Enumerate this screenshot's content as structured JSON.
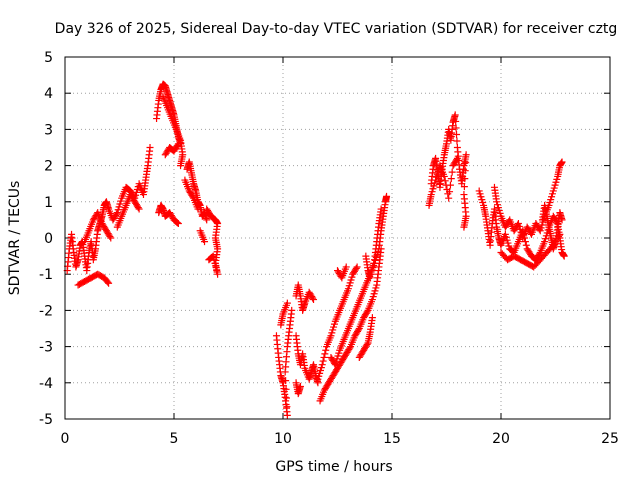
{
  "chart_data": {
    "type": "scatter",
    "title": "Day 326 of 2025, Sidereal Day-to-day VTEC variation (SDTVAR) for receiver cztg",
    "xlabel": "GPS time / hours",
    "ylabel": "SDTVAR / TECUs",
    "xlim": [
      0,
      25
    ],
    "ylim": [
      -5,
      5
    ],
    "xticks": [
      "0",
      "5",
      "10",
      "15",
      "20",
      "25"
    ],
    "yticks": [
      "5",
      "4",
      "3",
      "2",
      "1",
      "0",
      "-1",
      "-2",
      "-3",
      "-4",
      "-5"
    ],
    "grid": true,
    "marker": "plus",
    "color": "#ff0000",
    "segments": [
      [
        [
          0.1,
          -0.9
        ],
        [
          0.2,
          -0.3
        ],
        [
          0.3,
          0.1
        ],
        [
          0.4,
          -0.4
        ],
        [
          0.5,
          -0.8
        ],
        [
          0.6,
          -0.6
        ],
        [
          0.7,
          -0.2
        ],
        [
          0.8,
          -0.1
        ],
        [
          0.9,
          -0.5
        ],
        [
          1.0,
          -0.9
        ],
        [
          1.1,
          -0.4
        ],
        [
          1.2,
          -0.1
        ],
        [
          1.3,
          -0.6
        ],
        [
          1.4,
          -0.3
        ],
        [
          1.5,
          0.2
        ],
        [
          1.6,
          0.4
        ],
        [
          1.7,
          0.6
        ],
        [
          1.8,
          0.9
        ],
        [
          1.9,
          1.0
        ],
        [
          2.0,
          0.8
        ],
        [
          2.2,
          0.5
        ],
        [
          2.4,
          0.7
        ],
        [
          2.6,
          1.1
        ],
        [
          2.8,
          1.4
        ],
        [
          3.0,
          1.3
        ],
        [
          3.2,
          1.1
        ],
        [
          3.4,
          1.5
        ],
        [
          3.6,
          1.2
        ],
        [
          3.7,
          1.6
        ],
        [
          3.8,
          2.0
        ],
        [
          3.9,
          2.5
        ]
      ],
      [
        [
          0.6,
          -1.3
        ],
        [
          0.9,
          -1.2
        ],
        [
          1.2,
          -1.1
        ],
        [
          1.5,
          -1.0
        ],
        [
          1.8,
          -1.1
        ],
        [
          2.0,
          -1.25
        ]
      ],
      [
        [
          0.9,
          -0.1
        ],
        [
          1.1,
          0.2
        ],
        [
          1.3,
          0.5
        ],
        [
          1.5,
          0.7
        ],
        [
          1.7,
          0.4
        ],
        [
          1.9,
          0.2
        ],
        [
          2.1,
          0.0
        ]
      ],
      [
        [
          2.4,
          0.3
        ],
        [
          2.6,
          0.6
        ],
        [
          2.8,
          0.9
        ],
        [
          3.0,
          1.2
        ],
        [
          3.2,
          1.0
        ],
        [
          3.4,
          0.8
        ]
      ],
      [
        [
          4.2,
          3.3
        ],
        [
          4.3,
          3.8
        ],
        [
          4.4,
          4.1
        ],
        [
          4.5,
          4.25
        ],
        [
          4.6,
          4.2
        ],
        [
          4.7,
          4.0
        ],
        [
          4.8,
          3.8
        ],
        [
          4.9,
          3.6
        ],
        [
          5.0,
          3.4
        ],
        [
          5.1,
          3.1
        ],
        [
          5.2,
          2.8
        ],
        [
          5.3,
          2.6
        ]
      ],
      [
        [
          4.5,
          3.9
        ],
        [
          4.7,
          3.6
        ],
        [
          4.9,
          3.3
        ],
        [
          5.1,
          3.0
        ],
        [
          5.3,
          2.7
        ],
        [
          5.4,
          2.3
        ],
        [
          5.3,
          2.0
        ]
      ],
      [
        [
          4.3,
          0.7
        ],
        [
          4.4,
          0.9
        ],
        [
          4.5,
          0.8
        ],
        [
          4.6,
          0.6
        ],
        [
          4.8,
          0.7
        ],
        [
          5.0,
          0.5
        ],
        [
          5.2,
          0.4
        ]
      ],
      [
        [
          4.6,
          2.3
        ],
        [
          4.8,
          2.5
        ],
        [
          5.0,
          2.4
        ],
        [
          5.2,
          2.6
        ]
      ],
      [
        [
          5.6,
          1.9
        ],
        [
          5.7,
          2.1
        ],
        [
          5.8,
          1.8
        ],
        [
          5.9,
          1.5
        ],
        [
          6.0,
          1.3
        ],
        [
          6.1,
          1.0
        ],
        [
          6.2,
          0.9
        ],
        [
          6.3,
          0.6
        ],
        [
          6.4,
          0.7
        ],
        [
          6.5,
          0.5
        ]
      ],
      [
        [
          5.5,
          1.6
        ],
        [
          5.7,
          1.3
        ],
        [
          5.9,
          1.1
        ],
        [
          6.1,
          0.8
        ]
      ],
      [
        [
          6.5,
          0.8
        ],
        [
          6.7,
          0.6
        ],
        [
          6.9,
          0.5
        ],
        [
          7.0,
          0.4
        ],
        [
          6.9,
          0.0
        ],
        [
          7.0,
          -0.3
        ],
        [
          6.9,
          -0.7
        ],
        [
          7.0,
          -1.0
        ],
        [
          6.8,
          -0.5
        ],
        [
          6.6,
          -0.6
        ]
      ],
      [
        [
          6.4,
          -0.1
        ],
        [
          6.2,
          0.2
        ]
      ],
      [
        [
          9.7,
          -2.7
        ],
        [
          9.8,
          -3.3
        ],
        [
          9.9,
          -3.8
        ],
        [
          10.0,
          -4.0
        ],
        [
          10.1,
          -4.4
        ],
        [
          10.2,
          -4.9
        ],
        [
          10.1,
          -3.7
        ],
        [
          10.2,
          -3.0
        ],
        [
          10.3,
          -2.5
        ],
        [
          10.4,
          -2.0
        ]
      ],
      [
        [
          9.9,
          -2.4
        ],
        [
          10.0,
          -2.1
        ],
        [
          10.2,
          -1.8
        ]
      ],
      [
        [
          10.6,
          -1.6
        ],
        [
          10.7,
          -1.3
        ],
        [
          10.8,
          -1.6
        ],
        [
          10.9,
          -2.0
        ],
        [
          11.0,
          -1.8
        ],
        [
          11.2,
          -1.5
        ],
        [
          11.4,
          -1.7
        ]
      ],
      [
        [
          10.6,
          -2.7
        ],
        [
          10.7,
          -3.2
        ],
        [
          10.8,
          -3.5
        ],
        [
          10.9,
          -3.2
        ],
        [
          11.0,
          -3.6
        ],
        [
          11.2,
          -3.9
        ],
        [
          11.3,
          -3.7
        ],
        [
          11.4,
          -3.5
        ],
        [
          11.5,
          -3.8
        ],
        [
          11.6,
          -4.0
        ]
      ],
      [
        [
          10.6,
          -4.0
        ],
        [
          10.7,
          -4.3
        ],
        [
          10.8,
          -4.1
        ]
      ],
      [
        [
          11.6,
          -3.9
        ],
        [
          11.8,
          -3.5
        ],
        [
          12.0,
          -3.0
        ],
        [
          12.2,
          -2.7
        ],
        [
          12.4,
          -2.3
        ],
        [
          12.6,
          -2.0
        ],
        [
          12.8,
          -1.7
        ],
        [
          13.0,
          -1.4
        ],
        [
          13.2,
          -1.0
        ],
        [
          13.4,
          -0.8
        ]
      ],
      [
        [
          11.7,
          -4.5
        ],
        [
          11.9,
          -4.2
        ],
        [
          12.1,
          -4.0
        ],
        [
          12.3,
          -3.8
        ],
        [
          12.5,
          -3.6
        ],
        [
          12.7,
          -3.4
        ],
        [
          12.9,
          -3.2
        ],
        [
          13.1,
          -3.0
        ],
        [
          13.3,
          -2.7
        ],
        [
          13.5,
          -2.5
        ],
        [
          13.7,
          -2.2
        ],
        [
          13.9,
          -2.0
        ],
        [
          14.1,
          -1.7
        ],
        [
          14.3,
          -1.3
        ],
        [
          14.4,
          -0.8
        ],
        [
          14.5,
          -0.3
        ]
      ],
      [
        [
          12.2,
          -3.3
        ],
        [
          12.4,
          -3.5
        ],
        [
          12.6,
          -3.1
        ],
        [
          12.8,
          -2.8
        ],
        [
          13.0,
          -2.5
        ],
        [
          13.2,
          -2.2
        ],
        [
          13.4,
          -1.9
        ],
        [
          13.6,
          -1.6
        ],
        [
          13.8,
          -1.3
        ],
        [
          14.0,
          -1.0
        ],
        [
          14.2,
          -0.7
        ],
        [
          14.4,
          -0.3
        ],
        [
          14.5,
          0.2
        ],
        [
          14.6,
          0.6
        ],
        [
          14.7,
          1.0
        ],
        [
          14.75,
          1.15
        ]
      ],
      [
        [
          12.5,
          -0.9
        ],
        [
          12.7,
          -1.1
        ],
        [
          12.9,
          -0.8
        ]
      ],
      [
        [
          13.5,
          -3.3
        ],
        [
          13.7,
          -3.1
        ],
        [
          13.9,
          -2.9
        ],
        [
          14.0,
          -2.6
        ],
        [
          14.1,
          -2.2
        ]
      ],
      [
        [
          13.8,
          -0.5
        ],
        [
          13.9,
          -0.9
        ],
        [
          14.0,
          -1.1
        ],
        [
          14.2,
          -0.6
        ],
        [
          14.3,
          -0.1
        ],
        [
          14.4,
          0.4
        ],
        [
          14.5,
          0.8
        ]
      ],
      [
        [
          16.8,
          1.5
        ],
        [
          16.9,
          2.0
        ],
        [
          17.0,
          2.2
        ],
        [
          17.1,
          1.8
        ],
        [
          17.2,
          1.4
        ],
        [
          17.3,
          1.9
        ],
        [
          17.4,
          2.3
        ],
        [
          17.5,
          2.6
        ],
        [
          17.6,
          3.0
        ],
        [
          17.7,
          2.7
        ],
        [
          17.8,
          3.2
        ],
        [
          17.9,
          3.4
        ],
        [
          18.0,
          2.5
        ],
        [
          18.1,
          1.9
        ],
        [
          18.2,
          1.5
        ],
        [
          18.3,
          2.0
        ],
        [
          18.4,
          2.3
        ],
        [
          18.3,
          1.2
        ],
        [
          18.4,
          0.6
        ],
        [
          18.3,
          0.3
        ]
      ],
      [
        [
          16.7,
          0.9
        ],
        [
          16.8,
          1.2
        ],
        [
          17.0,
          1.6
        ],
        [
          17.2,
          2.0
        ],
        [
          17.4,
          1.7
        ],
        [
          17.6,
          1.1
        ],
        [
          17.8,
          2.0
        ],
        [
          18.0,
          2.2
        ]
      ],
      [
        [
          19.0,
          1.3
        ],
        [
          19.2,
          0.9
        ],
        [
          19.3,
          0.6
        ],
        [
          19.4,
          0.2
        ],
        [
          19.5,
          -0.2
        ],
        [
          19.6,
          0.4
        ],
        [
          19.7,
          0.8
        ],
        [
          19.8,
          0.3
        ],
        [
          19.9,
          0.0
        ],
        [
          20.0,
          -0.2
        ],
        [
          20.2,
          0.1
        ],
        [
          20.4,
          -0.3
        ],
        [
          20.6,
          -0.4
        ],
        [
          20.8,
          -0.1
        ],
        [
          21.0,
          0.2
        ],
        [
          21.2,
          -0.3
        ],
        [
          21.4,
          -0.5
        ],
        [
          21.6,
          -0.6
        ],
        [
          21.8,
          -0.4
        ],
        [
          22.0,
          -0.1
        ],
        [
          22.2,
          0.3
        ],
        [
          22.4,
          0.6
        ],
        [
          22.6,
          0.4
        ],
        [
          22.7,
          0.0
        ],
        [
          22.8,
          -0.4
        ],
        [
          22.9,
          -0.5
        ]
      ],
      [
        [
          19.7,
          1.4
        ],
        [
          19.8,
          1.0
        ],
        [
          20.0,
          0.6
        ],
        [
          20.2,
          0.3
        ],
        [
          20.4,
          0.5
        ],
        [
          20.6,
          0.2
        ],
        [
          20.8,
          0.4
        ],
        [
          21.0,
          0.0
        ],
        [
          21.2,
          0.3
        ],
        [
          21.4,
          0.1
        ],
        [
          21.6,
          0.4
        ],
        [
          21.8,
          0.2
        ],
        [
          22.0,
          0.6
        ],
        [
          22.2,
          0.9
        ],
        [
          22.4,
          1.3
        ],
        [
          22.6,
          1.7
        ],
        [
          22.7,
          2.0
        ],
        [
          22.8,
          2.1
        ]
      ],
      [
        [
          20.0,
          -0.4
        ],
        [
          20.3,
          -0.6
        ],
        [
          20.6,
          -0.5
        ],
        [
          20.9,
          -0.6
        ],
        [
          21.2,
          -0.7
        ],
        [
          21.5,
          -0.8
        ],
        [
          21.8,
          -0.6
        ],
        [
          22.1,
          -0.4
        ],
        [
          22.4,
          -0.2
        ],
        [
          22.7,
          0.1
        ]
      ],
      [
        [
          21.9,
          0.5
        ],
        [
          22.0,
          0.9
        ],
        [
          22.1,
          0.6
        ],
        [
          22.2,
          0.3
        ],
        [
          22.3,
          0.0
        ],
        [
          22.4,
          -0.3
        ],
        [
          22.5,
          -0.1
        ],
        [
          22.6,
          0.3
        ],
        [
          22.7,
          0.7
        ],
        [
          22.8,
          0.5
        ]
      ]
    ]
  }
}
